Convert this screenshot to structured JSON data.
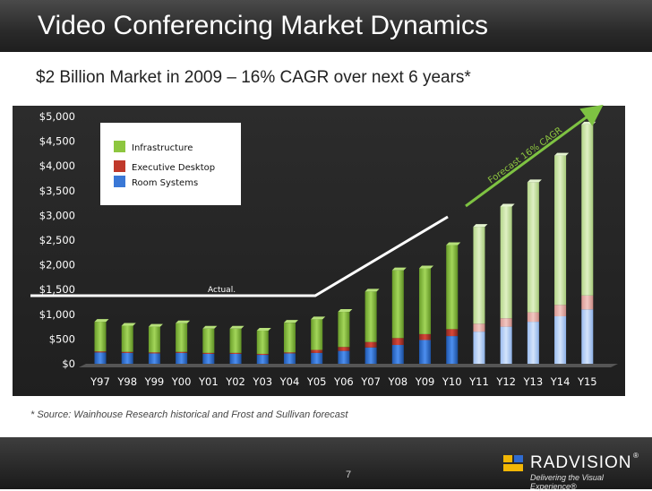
{
  "slide": {
    "title": "Video Conferencing Market Dynamics",
    "subtitle": "$2 Billion Market in 2009 – 16% CAGR over next 6 years*",
    "footnote": "*  Source: Wainhouse Research  historical and Frost and Sullivan forecast",
    "page_number": "7"
  },
  "brand": {
    "name": "RADVISION",
    "registered_mark": "®",
    "tagline": "Delivering the Visual Experience®"
  },
  "chart_data": {
    "type": "bar",
    "stacked": true,
    "categories": [
      "Y97",
      "Y98",
      "Y99",
      "Y00",
      "Y01",
      "Y02",
      "Y03",
      "Y04",
      "Y05",
      "Y06",
      "Y07",
      "Y08",
      "Y09",
      "Y10",
      "Y11",
      "Y12",
      "Y13",
      "Y14",
      "Y15"
    ],
    "series": [
      {
        "name": "Room Systems",
        "color": "#3a78d6",
        "values": [
          230,
          220,
          210,
          220,
          200,
          200,
          180,
          210,
          220,
          260,
          330,
          380,
          480,
          560,
          650,
          750,
          850,
          960,
          1100
        ]
      },
      {
        "name": "Executive Desktop",
        "color": "#c0392b",
        "values": [
          20,
          20,
          20,
          20,
          20,
          20,
          20,
          20,
          60,
          80,
          110,
          140,
          120,
          140,
          160,
          170,
          190,
          230,
          280
        ]
      },
      {
        "name": "Infrastructure",
        "color": "#8dc63f",
        "values": [
          600,
          530,
          520,
          580,
          490,
          490,
          470,
          600,
          620,
          710,
          1020,
          1370,
          1330,
          1700,
          1960,
          2260,
          2630,
          3020,
          3460
        ]
      }
    ],
    "forecast_from": "Y11",
    "ylim": [
      0,
      5000
    ],
    "yticks": [
      "$0",
      "$500",
      "$1,000",
      "$1,500",
      "$2,000",
      "$2,500",
      "$3,000",
      "$3,500",
      "$4,000",
      "$4,500",
      "$5,000"
    ],
    "ytick_values": [
      0,
      500,
      1000,
      1500,
      2000,
      2500,
      3000,
      3500,
      4000,
      4500,
      5000
    ],
    "legend": {
      "position": "top-left",
      "entries": [
        "Infrastructure",
        "Executive Desktop",
        "Room Systems"
      ]
    },
    "annotations": {
      "actual_label": "Actual.",
      "forecast_label": "Forecast 16% CAGR",
      "actual_level": 1400
    },
    "grid": false
  },
  "colors": {
    "plot_background": "#262626",
    "title_bar": "#2a2a2a",
    "text_light": "#ffffff",
    "accent_green": "#8dc63f"
  }
}
